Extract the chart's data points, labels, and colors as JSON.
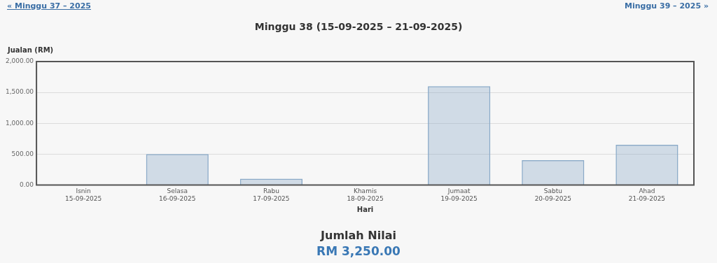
{
  "chart_data": {
    "type": "bar",
    "title": "Minggu 38 (15-09-2025 – 21-09-2025)",
    "xlabel": "Hari",
    "ylabel": "Jualan (RM)",
    "categories": [
      "Isnin\n15-09-2025",
      "Selasa\n16-09-2025",
      "Rabu\n17-09-2025",
      "Khamis\n18-09-2025",
      "Jumaat\n19-09-2025",
      "Sabtu\n20-09-2025",
      "Ahad\n21-09-2025"
    ],
    "values": [
      0,
      500,
      100,
      0,
      1600,
      400,
      650
    ],
    "color": "#8aaac8",
    "ylim": [
      0,
      2000
    ],
    "yticks": [
      {
        "value": 0,
        "label": "0.00"
      },
      {
        "value": 500,
        "label": "500.00"
      },
      {
        "value": 1000,
        "label": "1,000.00"
      },
      {
        "value": 1500,
        "label": "1,500.00"
      },
      {
        "value": 2000,
        "label": "2,000.00"
      }
    ],
    "grid": "y",
    "legend": false,
    "annotations": [
      "« Minggu 37 – 2025",
      "Minggu 39 – 2025 »",
      "Jumlah Nilai",
      "RM 3,250.00"
    ]
  }
}
